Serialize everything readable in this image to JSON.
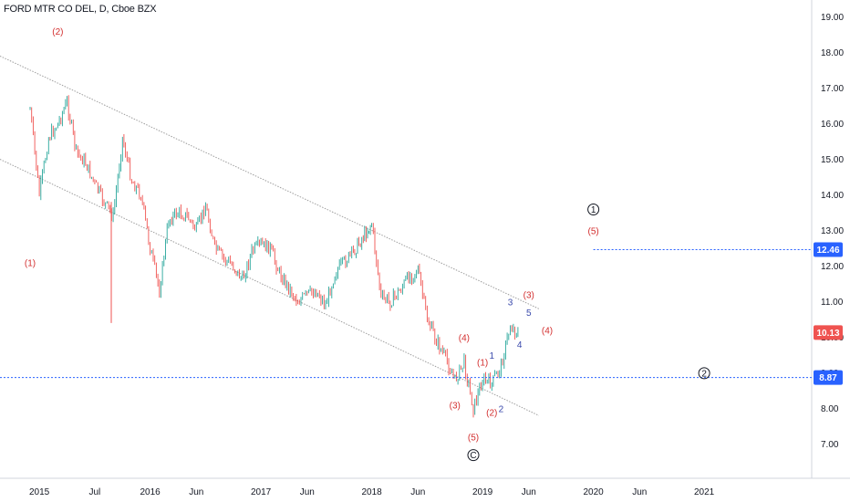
{
  "header": {
    "title": "FORD MTR CO DEL, D, Cboe BZX"
  },
  "colors": {
    "candle": "#26a69a",
    "candle_down": "#ef5350",
    "channel": "#9e9e9e",
    "hline": "#2962ff",
    "wave_red": "#d32f2f",
    "wave_blue": "#3949ab",
    "wave_black": "#131722",
    "price_badge": "#ef5350",
    "level_badge": "#2962ff"
  },
  "chart_data": {
    "type": "candlestick",
    "title": "FORD MTR CO DEL, D, Cboe BZX",
    "x_tick_labels": [
      "2015",
      "Jul",
      "2016",
      "Jun",
      "2017",
      "Jun",
      "2018",
      "Jun",
      "2019",
      "Jun",
      "2020",
      "Jun",
      "2021"
    ],
    "x_ticks": [
      "2015-01",
      "2015-07",
      "2016-01",
      "2016-06",
      "2017-01",
      "2017-06",
      "2018-01",
      "2018-06",
      "2019-01",
      "2019-06",
      "2020-01",
      "2020-06",
      "2021-01"
    ],
    "y_tick_labels": [
      "7.00",
      "8.00",
      "9.00",
      "10.00",
      "11.00",
      "12.00",
      "13.00",
      "14.00",
      "15.00",
      "16.00",
      "17.00",
      "18.00",
      "19.00"
    ],
    "y_ticks": [
      7,
      8,
      9,
      10,
      11,
      12,
      13,
      14,
      15,
      16,
      17,
      18,
      19
    ],
    "ylim": [
      6.4,
      19.4
    ],
    "grid": false,
    "price_path": [
      [
        "2014-12",
        16.4
      ],
      [
        "2015-01",
        14.0
      ],
      [
        "2015-02",
        15.6
      ],
      [
        "2015-03",
        16.0
      ],
      [
        "2015-04",
        16.6
      ],
      [
        "2015-05",
        15.2
      ],
      [
        "2015-06",
        14.9
      ],
      [
        "2015-07",
        14.3
      ],
      [
        "2015-08",
        13.8
      ],
      [
        "2015-09",
        13.4
      ],
      [
        "2015-10",
        15.6
      ],
      [
        "2015-11",
        14.4
      ],
      [
        "2015-12",
        14.0
      ],
      [
        "2016-01",
        12.5
      ],
      [
        "2016-02",
        11.3
      ],
      [
        "2016-03",
        13.3
      ],
      [
        "2016-04",
        13.5
      ],
      [
        "2016-05",
        13.4
      ],
      [
        "2016-06",
        13.0
      ],
      [
        "2016-07",
        13.7
      ],
      [
        "2016-08",
        12.5
      ],
      [
        "2016-09",
        12.2
      ],
      [
        "2016-10",
        12.0
      ],
      [
        "2016-11",
        11.6
      ],
      [
        "2016-12",
        12.4
      ],
      [
        "2017-01",
        12.6
      ],
      [
        "2017-02",
        12.5
      ],
      [
        "2017-03",
        11.8
      ],
      [
        "2017-04",
        11.4
      ],
      [
        "2017-05",
        11.0
      ],
      [
        "2017-06",
        11.2
      ],
      [
        "2017-07",
        11.3
      ],
      [
        "2017-08",
        10.9
      ],
      [
        "2017-09",
        11.8
      ],
      [
        "2017-10",
        12.1
      ],
      [
        "2017-11",
        12.4
      ],
      [
        "2018-01",
        13.2
      ],
      [
        "2018-02",
        11.1
      ],
      [
        "2018-03",
        11.0
      ],
      [
        "2018-04",
        11.3
      ],
      [
        "2018-05",
        11.7
      ],
      [
        "2018-06",
        11.9
      ],
      [
        "2018-07",
        10.5
      ],
      [
        "2018-08",
        9.9
      ],
      [
        "2018-09",
        9.4
      ],
      [
        "2018-10",
        8.8
      ],
      [
        "2018-11",
        9.3
      ],
      [
        "2018-12",
        8.0
      ],
      [
        "2019-01",
        8.8
      ],
      [
        "2019-02",
        8.7
      ],
      [
        "2019-03",
        9.2
      ],
      [
        "2019-04",
        10.3
      ],
      [
        "2019-05",
        10.1
      ]
    ],
    "spike_low": {
      "date": "2015-08",
      "low": 10.4
    },
    "channel_upper": [
      [
        "2014-12",
        17.9
      ],
      [
        "2019-07",
        10.8
      ]
    ],
    "channel_lower": [
      [
        "2014-12",
        15.0
      ],
      [
        "2019-07",
        7.8
      ]
    ],
    "levels": [
      {
        "value": 12.46,
        "label": "12.46",
        "from": "2020-01"
      },
      {
        "value": 8.87,
        "label": "8.87",
        "from": "2014-12"
      }
    ],
    "last_price": {
      "value": 10.13,
      "label": "10.13"
    },
    "annotations": [
      {
        "text": "(1)",
        "date": "2014-12",
        "y": 12.0,
        "color": "red"
      },
      {
        "text": "(2)",
        "date": "2015-03",
        "y": 18.5,
        "color": "red"
      },
      {
        "text": "(3)",
        "date": "2018-10",
        "y": 8.0,
        "color": "red"
      },
      {
        "text": "(4)",
        "date": "2018-11",
        "y": 9.9,
        "color": "red"
      },
      {
        "text": "(5)",
        "date": "2018-12",
        "y": 7.1,
        "color": "red"
      },
      {
        "text": "C",
        "date": "2018-12",
        "y": 6.6,
        "color": "black",
        "circled": true
      },
      {
        "text": "(1)",
        "date": "2019-01",
        "y": 9.2,
        "color": "red"
      },
      {
        "text": "(2)",
        "date": "2019-02",
        "y": 7.8,
        "color": "red"
      },
      {
        "text": "1",
        "date": "2019-02",
        "y": 9.4,
        "color": "blue"
      },
      {
        "text": "2",
        "date": "2019-03",
        "y": 7.9,
        "color": "blue"
      },
      {
        "text": "3",
        "date": "2019-04",
        "y": 10.9,
        "color": "blue"
      },
      {
        "text": "4",
        "date": "2019-05",
        "y": 9.7,
        "color": "blue"
      },
      {
        "text": "5",
        "date": "2019-06",
        "y": 10.6,
        "color": "blue"
      },
      {
        "text": "(3)",
        "date": "2019-06",
        "y": 11.1,
        "color": "red"
      },
      {
        "text": "(4)",
        "date": "2019-08",
        "y": 10.1,
        "color": "red"
      },
      {
        "text": "1",
        "date": "2020-01",
        "y": 13.5,
        "color": "black",
        "circled": true
      },
      {
        "text": "(5)",
        "date": "2020-01",
        "y": 12.9,
        "color": "red"
      },
      {
        "text": "2",
        "date": "2021-01",
        "y": 8.9,
        "color": "black",
        "circled": true
      }
    ]
  }
}
